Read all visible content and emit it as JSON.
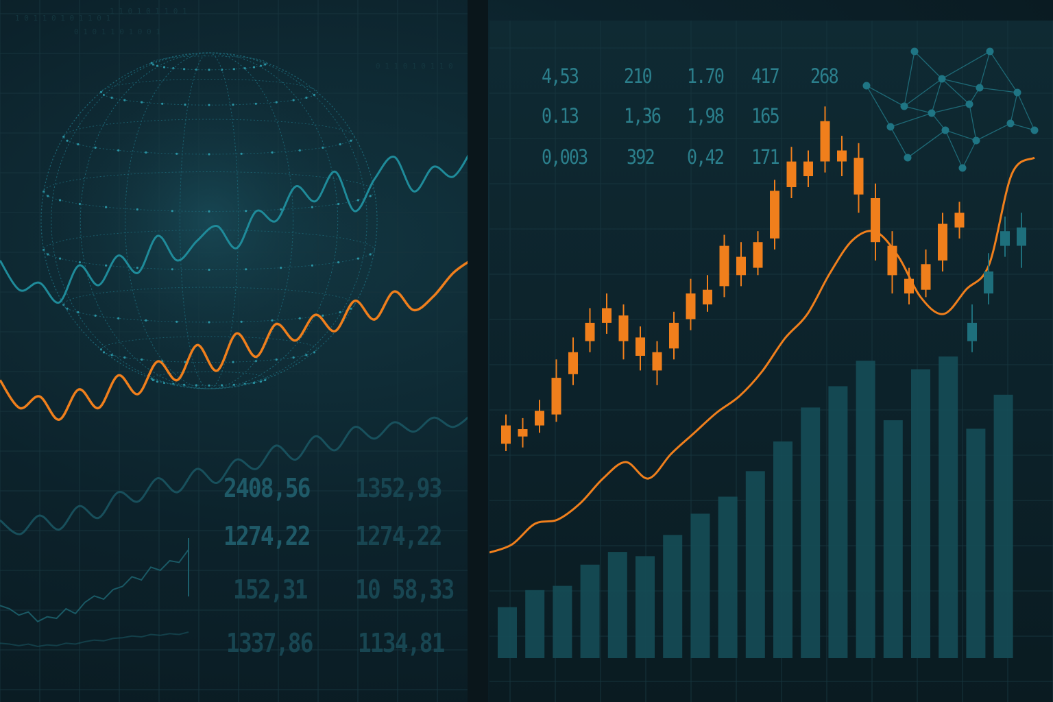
{
  "colors": {
    "background": "#0b1b22",
    "orange": "#f07f1c",
    "teal": "#1f8b9a",
    "teal_dim": "#1c5f6c",
    "bar": "#154c57",
    "text_left": "#1f5a68",
    "text_right": "#2b7f8c",
    "grid": "#16343d"
  },
  "left_panel": {
    "globe": {
      "icon": "wireframe-globe-icon"
    },
    "binary_columns": [
      "1 0 1 1 0 1 0 1 1 0 1",
      "0 1 0 1 1 0 1 0 0 1",
      "1 1 0 1 0 1 1 0 1",
      "0 1 1 0 1 0 1 1 0"
    ],
    "number_table": [
      [
        "2408,56",
        "1352,93"
      ],
      [
        "1274,22",
        "1274,22"
      ],
      [
        "152,31",
        "10 58,33"
      ],
      [
        "1337,86",
        "1134,81"
      ]
    ]
  },
  "right_panel": {
    "number_table": [
      [
        "4,53",
        "210",
        "1.70",
        "417",
        "268"
      ],
      [
        "0.13",
        "1,36",
        "1,98",
        "165",
        ""
      ],
      [
        "0,003",
        "392",
        "0,42",
        "171",
        ""
      ]
    ],
    "network": {
      "icon": "network-graph-icon"
    }
  },
  "chart_data": [
    {
      "type": "line",
      "panel": "left",
      "grid": true,
      "x": [
        0,
        10,
        20,
        30,
        40,
        50,
        60,
        70,
        80,
        90,
        100,
        110,
        120,
        130,
        140,
        150,
        160,
        170,
        180,
        190,
        200,
        210,
        220,
        230,
        240
      ],
      "series": [
        {
          "color": "teal",
          "values": [
            50,
            38,
            41,
            33,
            48,
            40,
            52,
            45,
            60,
            50,
            58,
            64,
            55,
            70,
            66,
            80,
            74,
            86,
            70,
            83,
            92,
            78,
            88,
            84,
            96
          ]
        },
        {
          "color": "orange",
          "values": [
            34,
            22,
            27,
            17,
            30,
            22,
            36,
            28,
            42,
            34,
            49,
            38,
            54,
            44,
            58,
            51,
            62,
            55,
            68,
            60,
            72,
            64,
            70,
            80,
            86
          ]
        },
        {
          "color": "teal_dim",
          "values": [
            18,
            12,
            20,
            14,
            24,
            19,
            30,
            26,
            36,
            30,
            40,
            34,
            44,
            40,
            50,
            44,
            54,
            48,
            58,
            53,
            60,
            56,
            62,
            58,
            64
          ]
        }
      ]
    },
    {
      "type": "line",
      "panel": "left-inset",
      "grid": false,
      "x": [
        0,
        1,
        2,
        3,
        4,
        5,
        6,
        7,
        8,
        9,
        10,
        11,
        12,
        13,
        14,
        15,
        16,
        17,
        18,
        19,
        20
      ],
      "series": [
        {
          "color": "teal_dim",
          "values": [
            20,
            18,
            14,
            16,
            10,
            13,
            12,
            18,
            15,
            22,
            26,
            24,
            30,
            32,
            38,
            36,
            44,
            42,
            48,
            47,
            55
          ]
        },
        {
          "color": "teal_dim",
          "values": [
            10,
            9,
            7,
            9,
            6,
            8,
            7,
            10,
            9,
            12,
            14,
            13,
            16,
            17,
            19,
            18,
            21,
            20,
            22,
            21,
            24
          ]
        }
      ]
    },
    {
      "type": "candlestick",
      "panel": "right",
      "grid": true,
      "ylim": [
        0,
        100
      ],
      "candles": [
        {
          "open": 22,
          "close": 27,
          "high": 30,
          "low": 20,
          "color": "orange"
        },
        {
          "open": 24,
          "close": 26,
          "high": 29,
          "low": 21,
          "color": "orange"
        },
        {
          "open": 27,
          "close": 31,
          "high": 34,
          "low": 25,
          "color": "orange"
        },
        {
          "open": 30,
          "close": 40,
          "high": 45,
          "low": 28,
          "color": "orange"
        },
        {
          "open": 41,
          "close": 47,
          "high": 51,
          "low": 38,
          "color": "orange"
        },
        {
          "open": 50,
          "close": 55,
          "high": 59,
          "low": 47,
          "color": "orange"
        },
        {
          "open": 55,
          "close": 59,
          "high": 63,
          "low": 52,
          "color": "orange"
        },
        {
          "open": 57,
          "close": 50,
          "high": 60,
          "low": 45,
          "color": "orange"
        },
        {
          "open": 51,
          "close": 46,
          "high": 54,
          "low": 42,
          "color": "orange"
        },
        {
          "open": 47,
          "close": 42,
          "high": 50,
          "low": 38,
          "color": "orange"
        },
        {
          "open": 48,
          "close": 55,
          "high": 58,
          "low": 45,
          "color": "orange"
        },
        {
          "open": 56,
          "close": 63,
          "high": 67,
          "low": 53,
          "color": "orange"
        },
        {
          "open": 60,
          "close": 64,
          "high": 68,
          "low": 58,
          "color": "orange"
        },
        {
          "open": 65,
          "close": 76,
          "high": 79,
          "low": 62,
          "color": "orange"
        },
        {
          "open": 68,
          "close": 73,
          "high": 77,
          "low": 65,
          "color": "orange"
        },
        {
          "open": 70,
          "close": 77,
          "high": 80,
          "low": 68,
          "color": "orange"
        },
        {
          "open": 78,
          "close": 91,
          "high": 94,
          "low": 75,
          "color": "orange"
        },
        {
          "open": 92,
          "close": 99,
          "high": 103,
          "low": 89,
          "color": "orange"
        },
        {
          "open": 95,
          "close": 99,
          "high": 102,
          "low": 92,
          "color": "orange"
        },
        {
          "open": 99,
          "close": 110,
          "high": 114,
          "low": 96,
          "color": "orange"
        },
        {
          "open": 102,
          "close": 99,
          "high": 106,
          "low": 95,
          "color": "orange"
        },
        {
          "open": 100,
          "close": 90,
          "high": 104,
          "low": 85,
          "color": "orange"
        },
        {
          "open": 89,
          "close": 77,
          "high": 93,
          "low": 72,
          "color": "orange"
        },
        {
          "open": 76,
          "close": 68,
          "high": 80,
          "low": 63,
          "color": "orange"
        },
        {
          "open": 67,
          "close": 63,
          "high": 70,
          "low": 60,
          "color": "orange"
        },
        {
          "open": 64,
          "close": 71,
          "high": 75,
          "low": 62,
          "color": "orange"
        },
        {
          "open": 72,
          "close": 82,
          "high": 85,
          "low": 69,
          "color": "orange"
        },
        {
          "open": 81,
          "close": 85,
          "high": 88,
          "low": 78,
          "color": "orange"
        },
        {
          "open": 50,
          "close": 55,
          "high": 60,
          "low": 47,
          "color": "teal"
        },
        {
          "open": 63,
          "close": 69,
          "high": 74,
          "low": 60,
          "color": "teal"
        },
        {
          "open": 76,
          "close": 80,
          "high": 84,
          "low": 73,
          "color": "teal"
        },
        {
          "open": 76,
          "close": 81,
          "high": 85,
          "low": 70,
          "color": "teal"
        }
      ],
      "line": {
        "color": "orange",
        "values": [
          4,
          6,
          11,
          12,
          16,
          22,
          26,
          22,
          28,
          33,
          38,
          42,
          48,
          56,
          62,
          72,
          80,
          82,
          76,
          66,
          62,
          68,
          74,
          96,
          100
        ]
      },
      "bars": {
        "color": "bar",
        "values": [
          12,
          16,
          17,
          22,
          25,
          24,
          29,
          34,
          38,
          44,
          51,
          59,
          64,
          70,
          56,
          68,
          71,
          54,
          62
        ]
      }
    }
  ]
}
